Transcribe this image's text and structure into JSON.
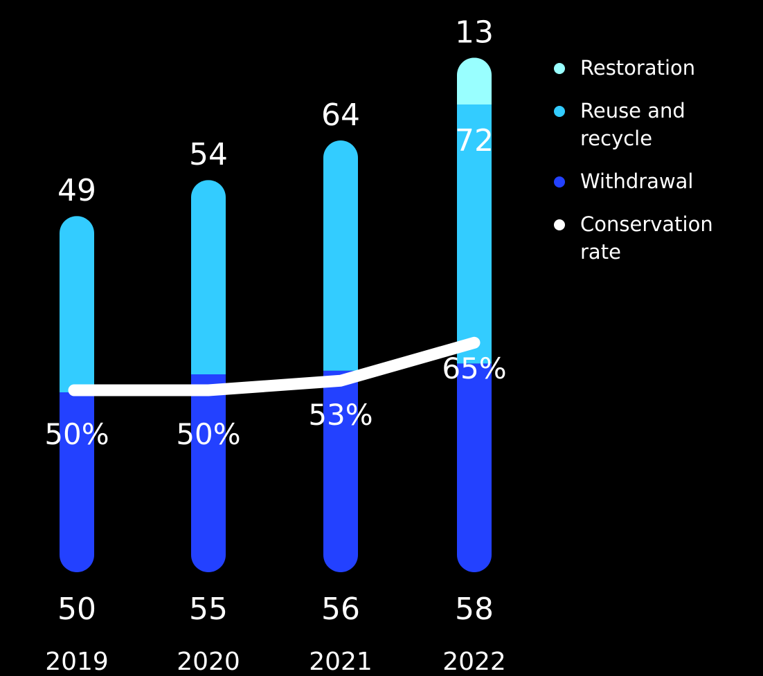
{
  "chart_data": {
    "type": "bar",
    "stacked": true,
    "categories": [
      "2019",
      "2020",
      "2021",
      "2022"
    ],
    "series": [
      {
        "name": "Withdrawal",
        "values": [
          50,
          55,
          56,
          58
        ],
        "color": "#2341FF"
      },
      {
        "name": "Reuse and recycle",
        "values": [
          49,
          54,
          64,
          72
        ],
        "color": "#33CCFF"
      },
      {
        "name": "Restoration",
        "values": [
          null,
          null,
          null,
          13
        ],
        "color": "#99FFFF"
      }
    ],
    "line_series": {
      "name": "Conservation rate",
      "values": [
        50,
        50,
        53,
        65
      ],
      "labels": [
        "50%",
        "50%",
        "53%",
        "65%"
      ],
      "color": "#FFFFFF"
    },
    "legend": {
      "placement": "top-right",
      "items": [
        {
          "label": "Restoration",
          "color": "#99FFFF"
        },
        {
          "label": "Reuse and recycle",
          "color": "#33CCFF"
        },
        {
          "label": "Withdrawal",
          "color": "#2341FF"
        },
        {
          "label": "Conservation rate",
          "color": "#FFFFFF"
        }
      ]
    },
    "grid": false,
    "title": "",
    "xlabel": "",
    "ylabel": ""
  }
}
